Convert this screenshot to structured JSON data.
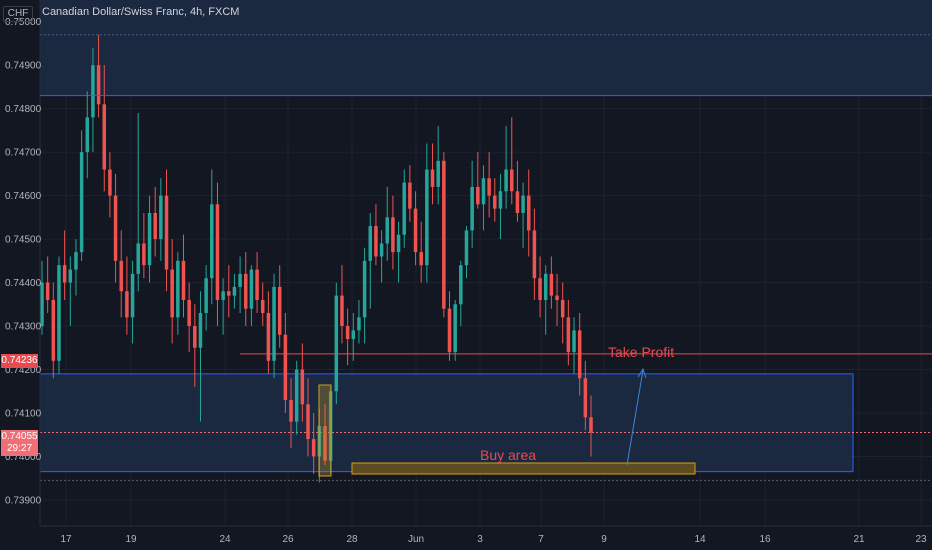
{
  "currency_label": "CHF",
  "title": "Canadian Dollar/Swiss Franc, 4h, FXCM",
  "colors": {
    "background": "#131722",
    "up": "#26a69a",
    "down": "#ef5350",
    "zone_fill": "#1c2b45",
    "zone_border": "#2962ff",
    "take_profit": "#e84a4f",
    "buy_area_fill": "#5d4c22",
    "buy_area_border": "#d4a017",
    "arrow": "#3e82d6"
  },
  "price_tags": {
    "last_price": "0.74236",
    "current_price": "0.74055",
    "countdown": "29:27"
  },
  "annotations": {
    "take_profit_label": "Take Profit",
    "buy_area_label": "Buy area"
  },
  "chart_data": {
    "type": "candlestick",
    "title": "Canadian Dollar/Swiss Franc, 4h, FXCM",
    "ylim": [
      0.7384,
      0.7505
    ],
    "y_ticks": [
      "0.75000",
      "0.74900",
      "0.74800",
      "0.74700",
      "0.74600",
      "0.74500",
      "0.74400",
      "0.74300",
      "0.74200",
      "0.74100",
      "0.74000",
      "0.73900"
    ],
    "x_tick_labels": [
      "17",
      "19",
      "24",
      "26",
      "28",
      "Jun",
      "3",
      "7",
      "9",
      "14",
      "16",
      "21",
      "23"
    ],
    "levels": {
      "resistance_zone": [
        0.7483,
        0.7506
      ],
      "resistance_dotted": 0.7497,
      "take_profit": 0.74236,
      "current_price": 0.74055,
      "support_zone": [
        0.73965,
        0.7419
      ],
      "support_dotted": 0.73945
    },
    "ohlc": [
      [
        0.743,
        0.7445,
        0.7428,
        0.744
      ],
      [
        0.744,
        0.7446,
        0.7433,
        0.7436
      ],
      [
        0.7436,
        0.744,
        0.7418,
        0.7422
      ],
      [
        0.7422,
        0.7446,
        0.7419,
        0.7444
      ],
      [
        0.7444,
        0.7452,
        0.7436,
        0.744
      ],
      [
        0.744,
        0.7446,
        0.743,
        0.7443
      ],
      [
        0.7443,
        0.745,
        0.7437,
        0.7447
      ],
      [
        0.7447,
        0.7475,
        0.7445,
        0.747
      ],
      [
        0.747,
        0.7484,
        0.7464,
        0.7478
      ],
      [
        0.7478,
        0.7494,
        0.747,
        0.749
      ],
      [
        0.749,
        0.7497,
        0.7478,
        0.7481
      ],
      [
        0.7481,
        0.749,
        0.7461,
        0.7466
      ],
      [
        0.7466,
        0.747,
        0.7455,
        0.746
      ],
      [
        0.746,
        0.7465,
        0.744,
        0.7445
      ],
      [
        0.7445,
        0.7452,
        0.7432,
        0.7438
      ],
      [
        0.7438,
        0.7446,
        0.7428,
        0.7432
      ],
      [
        0.7432,
        0.7445,
        0.7426,
        0.7442
      ],
      [
        0.7442,
        0.7479,
        0.7438,
        0.7449
      ],
      [
        0.7449,
        0.7456,
        0.7441,
        0.7444
      ],
      [
        0.7444,
        0.746,
        0.744,
        0.7456
      ],
      [
        0.7456,
        0.7462,
        0.7446,
        0.745
      ],
      [
        0.745,
        0.7464,
        0.7445,
        0.746
      ],
      [
        0.746,
        0.7466,
        0.7438,
        0.7443
      ],
      [
        0.7443,
        0.745,
        0.7426,
        0.7432
      ],
      [
        0.7432,
        0.7447,
        0.7428,
        0.7445
      ],
      [
        0.7445,
        0.7451,
        0.7432,
        0.7436
      ],
      [
        0.7436,
        0.744,
        0.7424,
        0.743
      ],
      [
        0.743,
        0.7435,
        0.7416,
        0.7425
      ],
      [
        0.7425,
        0.7438,
        0.7408,
        0.7433
      ],
      [
        0.7433,
        0.7444,
        0.7429,
        0.7441
      ],
      [
        0.7441,
        0.7466,
        0.7435,
        0.7458
      ],
      [
        0.7458,
        0.7463,
        0.743,
        0.7436
      ],
      [
        0.7436,
        0.7441,
        0.7428,
        0.7438
      ],
      [
        0.7438,
        0.7444,
        0.7432,
        0.7437
      ],
      [
        0.7437,
        0.7442,
        0.7434,
        0.7439
      ],
      [
        0.7439,
        0.7446,
        0.7433,
        0.7442
      ],
      [
        0.7442,
        0.7447,
        0.743,
        0.7434
      ],
      [
        0.7434,
        0.7444,
        0.743,
        0.7443
      ],
      [
        0.7443,
        0.7447,
        0.7433,
        0.7436
      ],
      [
        0.7436,
        0.744,
        0.743,
        0.7433
      ],
      [
        0.7433,
        0.7438,
        0.7419,
        0.7422
      ],
      [
        0.7422,
        0.7442,
        0.7418,
        0.7439
      ],
      [
        0.7439,
        0.7444,
        0.7425,
        0.7428
      ],
      [
        0.7428,
        0.7433,
        0.741,
        0.7413
      ],
      [
        0.7413,
        0.7418,
        0.7402,
        0.7408
      ],
      [
        0.7408,
        0.7422,
        0.7405,
        0.742
      ],
      [
        0.742,
        0.7426,
        0.7408,
        0.7412
      ],
      [
        0.7412,
        0.7418,
        0.74,
        0.7404
      ],
      [
        0.7404,
        0.741,
        0.7396,
        0.74
      ],
      [
        0.74,
        0.7411,
        0.7394,
        0.7407
      ],
      [
        0.7407,
        0.7412,
        0.7398,
        0.7399
      ],
      [
        0.7399,
        0.7416,
        0.7396,
        0.7415
      ],
      [
        0.7415,
        0.744,
        0.7412,
        0.7437
      ],
      [
        0.7437,
        0.7444,
        0.7426,
        0.743
      ],
      [
        0.743,
        0.7434,
        0.7421,
        0.7427
      ],
      [
        0.7427,
        0.7433,
        0.7422,
        0.7429
      ],
      [
        0.7429,
        0.7436,
        0.7426,
        0.7432
      ],
      [
        0.7432,
        0.7448,
        0.7426,
        0.7445
      ],
      [
        0.7445,
        0.7456,
        0.7434,
        0.7453
      ],
      [
        0.7453,
        0.7458,
        0.7444,
        0.7446
      ],
      [
        0.7446,
        0.7452,
        0.744,
        0.7449
      ],
      [
        0.7449,
        0.7462,
        0.7445,
        0.7455
      ],
      [
        0.7455,
        0.746,
        0.7443,
        0.7447
      ],
      [
        0.7447,
        0.7454,
        0.744,
        0.7451
      ],
      [
        0.7451,
        0.7466,
        0.7448,
        0.7463
      ],
      [
        0.7463,
        0.7467,
        0.7454,
        0.7457
      ],
      [
        0.7457,
        0.7461,
        0.7444,
        0.7447
      ],
      [
        0.7447,
        0.7454,
        0.744,
        0.7444
      ],
      [
        0.7444,
        0.7472,
        0.744,
        0.7466
      ],
      [
        0.7466,
        0.7472,
        0.7458,
        0.7462
      ],
      [
        0.7462,
        0.7476,
        0.7458,
        0.7468
      ],
      [
        0.7468,
        0.747,
        0.7432,
        0.7434
      ],
      [
        0.7434,
        0.7438,
        0.7422,
        0.7424
      ],
      [
        0.7424,
        0.7436,
        0.7422,
        0.7435
      ],
      [
        0.7435,
        0.7445,
        0.743,
        0.7444
      ],
      [
        0.7444,
        0.7453,
        0.7441,
        0.7452
      ],
      [
        0.7452,
        0.7468,
        0.7448,
        0.7462
      ],
      [
        0.7462,
        0.747,
        0.7457,
        0.7458
      ],
      [
        0.7458,
        0.7467,
        0.7452,
        0.7464
      ],
      [
        0.7464,
        0.747,
        0.7455,
        0.746
      ],
      [
        0.746,
        0.7464,
        0.7454,
        0.7457
      ],
      [
        0.7457,
        0.7465,
        0.745,
        0.7461
      ],
      [
        0.7461,
        0.7476,
        0.7457,
        0.7466
      ],
      [
        0.7466,
        0.7478,
        0.7458,
        0.7461
      ],
      [
        0.7461,
        0.7468,
        0.7454,
        0.7456
      ],
      [
        0.7456,
        0.7463,
        0.7448,
        0.746
      ],
      [
        0.746,
        0.7466,
        0.7446,
        0.7452
      ],
      [
        0.7452,
        0.7457,
        0.7436,
        0.7441
      ],
      [
        0.7441,
        0.7446,
        0.7432,
        0.7436
      ],
      [
        0.7436,
        0.7444,
        0.7428,
        0.7442
      ],
      [
        0.7442,
        0.7446,
        0.7434,
        0.7437
      ],
      [
        0.7437,
        0.7442,
        0.743,
        0.7436
      ],
      [
        0.7436,
        0.744,
        0.7426,
        0.7432
      ],
      [
        0.7432,
        0.7436,
        0.7421,
        0.7424
      ],
      [
        0.7424,
        0.7432,
        0.7419,
        0.7429
      ],
      [
        0.7429,
        0.7433,
        0.7414,
        0.7418
      ],
      [
        0.7418,
        0.7422,
        0.7406,
        0.7409
      ],
      [
        0.7409,
        0.7414,
        0.74,
        0.74055
      ]
    ]
  }
}
